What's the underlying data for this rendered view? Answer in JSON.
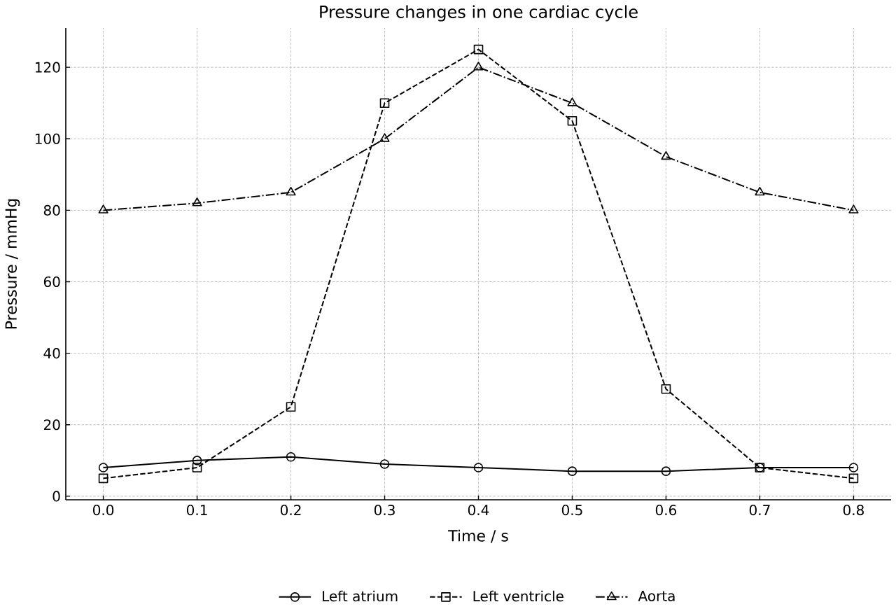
{
  "chart_data": {
    "type": "line",
    "title": "Pressure changes in one cardiac cycle",
    "xlabel": "Time / s",
    "ylabel": "Pressure / mmHg",
    "x": [
      0,
      0.1,
      0.2,
      0.3,
      0.4,
      0.5,
      0.6,
      0.7,
      0.8
    ],
    "series": [
      {
        "name": "Left atrium",
        "color": "#000000",
        "marker": "circle",
        "line_style": "solid",
        "values": [
          8,
          10,
          11,
          9,
          8,
          7,
          7,
          8,
          8
        ]
      },
      {
        "name": "Left ventricle",
        "color": "#000000",
        "marker": "square",
        "line_style": "dashed",
        "values": [
          5,
          8,
          25,
          110,
          125,
          105,
          30,
          8,
          5
        ]
      },
      {
        "name": "Aorta",
        "color": "#000000",
        "marker": "triangle",
        "line_style": "dashdot",
        "values": [
          80,
          82,
          85,
          100,
          120,
          110,
          95,
          85,
          80
        ]
      }
    ],
    "xlim": [
      -0.04,
      0.84
    ],
    "ylim": [
      -1,
      131
    ],
    "xticks": [
      {
        "value": 0,
        "label": "0.0"
      },
      0.1,
      0.2,
      0.3,
      0.4,
      0.5,
      0.6,
      0.7,
      0.8
    ],
    "yticks": [
      0,
      20,
      40,
      60,
      80,
      100,
      120
    ],
    "grid": true,
    "legend": "bottom"
  }
}
